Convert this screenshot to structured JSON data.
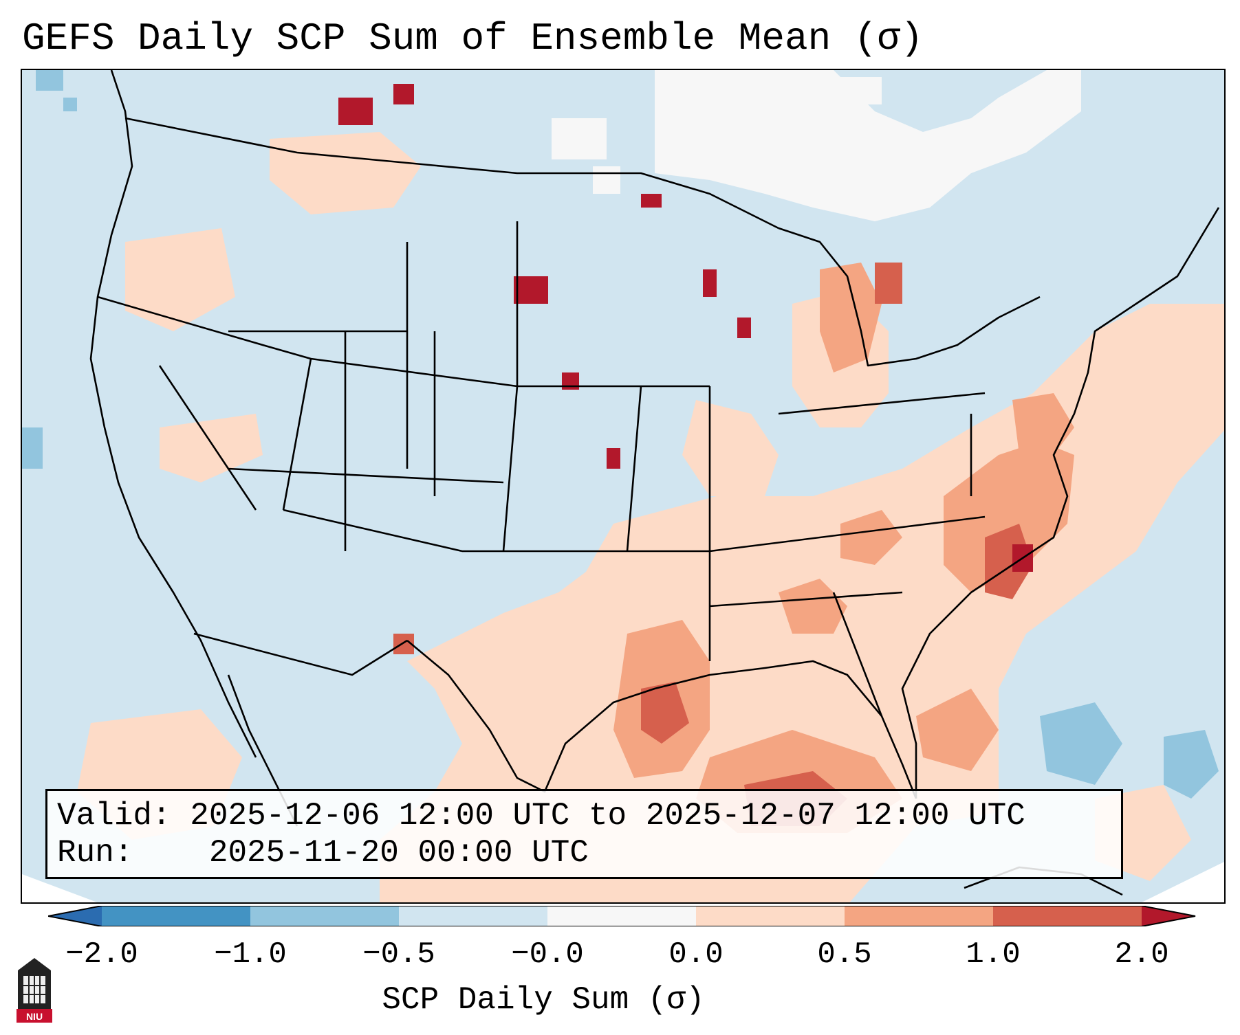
{
  "title": "GEFS Daily SCP Sum of Ensemble Mean (σ)",
  "info": {
    "valid_label": "Valid:",
    "valid_value": "2025-12-06 12:00 UTC to 2025-12-07 12:00 UTC",
    "run_label": "Run:",
    "run_value": "2025-11-20 00:00 UTC"
  },
  "colorbar": {
    "title": "SCP Daily Sum (σ)",
    "ticks": [
      "−2.0",
      "−1.0",
      "−0.5",
      "−0.0",
      "0.0",
      "0.5",
      "1.0",
      "2.0"
    ],
    "colors": {
      "below_min": "#2b6cb0",
      "bin_-2_-1": "#4393c3",
      "bin_-1_-0.5": "#92c5de",
      "bin_-0.5_0": "#d1e5f0",
      "bin_0": "#f7f7f7",
      "bin_0_0.5": "#fddbc7",
      "bin_0.5_1": "#f4a582",
      "bin_1_2": "#d6604d",
      "above_max": "#b2182b"
    }
  },
  "logo": {
    "text": "NIU",
    "icon": "niu-tower-icon"
  }
}
